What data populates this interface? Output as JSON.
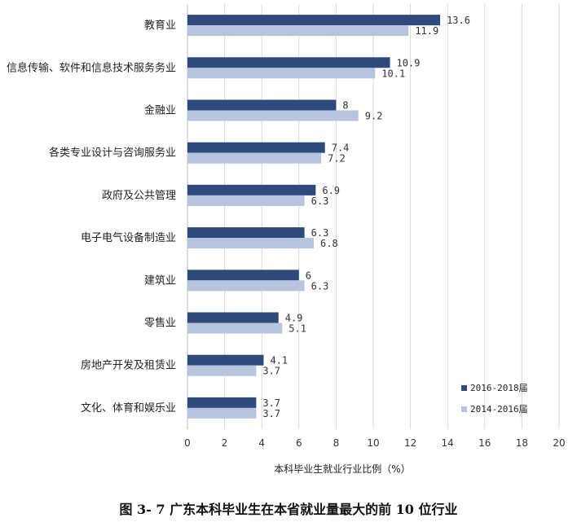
{
  "caption": "图 3- 7  广东本科毕业生在本省就业量最大的前 10 位行业",
  "chart_data": {
    "type": "bar",
    "orientation": "horizontal",
    "categories": [
      "教育业",
      "信息传输、软件和信息技术服务务业",
      "金融业",
      "各类专业设计与咨询服务业",
      "政府及公共管理",
      "电子电气设备制造业",
      "建筑业",
      "零售业",
      "房地产开发及租赁业",
      "文化、体育和娱乐业"
    ],
    "series": [
      {
        "name": "2016-2018届",
        "color": "#2e4a7d",
        "values": [
          13.6,
          10.9,
          8,
          7.4,
          6.9,
          6.3,
          6,
          4.9,
          4.1,
          3.7
        ],
        "labels": [
          "13.6",
          "10.9",
          "8",
          "7.4",
          "6.9",
          "6.3",
          "6",
          "4.9",
          "4.1",
          "3.7"
        ]
      },
      {
        "name": "2014-2016届",
        "color": "#b8c3de",
        "values": [
          11.9,
          10.1,
          9.2,
          7.2,
          6.3,
          6.8,
          6.3,
          5.1,
          3.7,
          3.7
        ],
        "labels": [
          "11.9",
          "10.1",
          "9.2",
          "7.2",
          "6.3",
          "6.8",
          "6.3",
          "5.1",
          "3.7",
          "3.7"
        ]
      }
    ],
    "xlabel": "本科毕业生就业行业比例（%）",
    "xlim": [
      0,
      20
    ],
    "xticks": [
      "0",
      "2",
      "4",
      "6",
      "8",
      "10",
      "12",
      "14",
      "16",
      "18",
      "20"
    ],
    "grid": true,
    "legend_position": "bottom-right"
  }
}
